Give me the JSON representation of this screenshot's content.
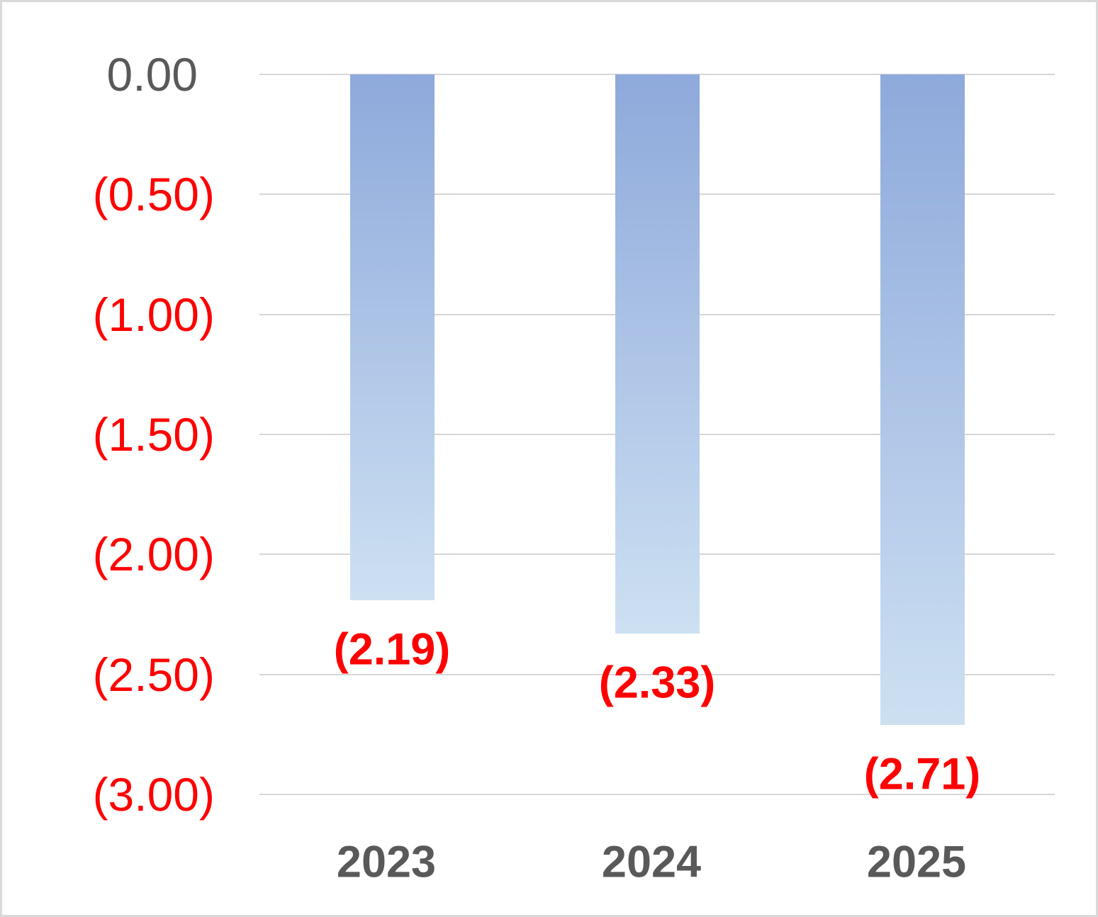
{
  "chart_data": {
    "type": "bar",
    "title": "",
    "xlabel": "",
    "ylabel": "",
    "categories": [
      "2023",
      "2024",
      "2025"
    ],
    "values": [
      -2.19,
      -2.33,
      -2.71
    ],
    "data_labels": [
      "(2.19)",
      "(2.33)",
      "(2.71)"
    ],
    "y_ticks": [
      {
        "value": 0.0,
        "label": "0.00"
      },
      {
        "value": -0.5,
        "label": "(0.50)"
      },
      {
        "value": -1.0,
        "label": "(1.00)"
      },
      {
        "value": -1.5,
        "label": "(1.50)"
      },
      {
        "value": -2.0,
        "label": "(2.00)"
      },
      {
        "value": -2.5,
        "label": "(2.50)"
      },
      {
        "value": -3.0,
        "label": "(3.00)"
      }
    ],
    "ylim": [
      -3.0,
      0.0
    ],
    "grid": true,
    "legend": null,
    "number_format": "accounting-parentheses",
    "colors": {
      "bar_gradient_top": "#8EA9DB",
      "bar_gradient_bottom": "#CDE0F2",
      "gridline": "#D6D6D6",
      "tick_zero": "#595959",
      "tick_negative": "#FF0000",
      "data_label": "#FF0000",
      "category_label": "#595959",
      "background": "#FFFFFF",
      "frame_border": "#D9D9D9"
    }
  }
}
